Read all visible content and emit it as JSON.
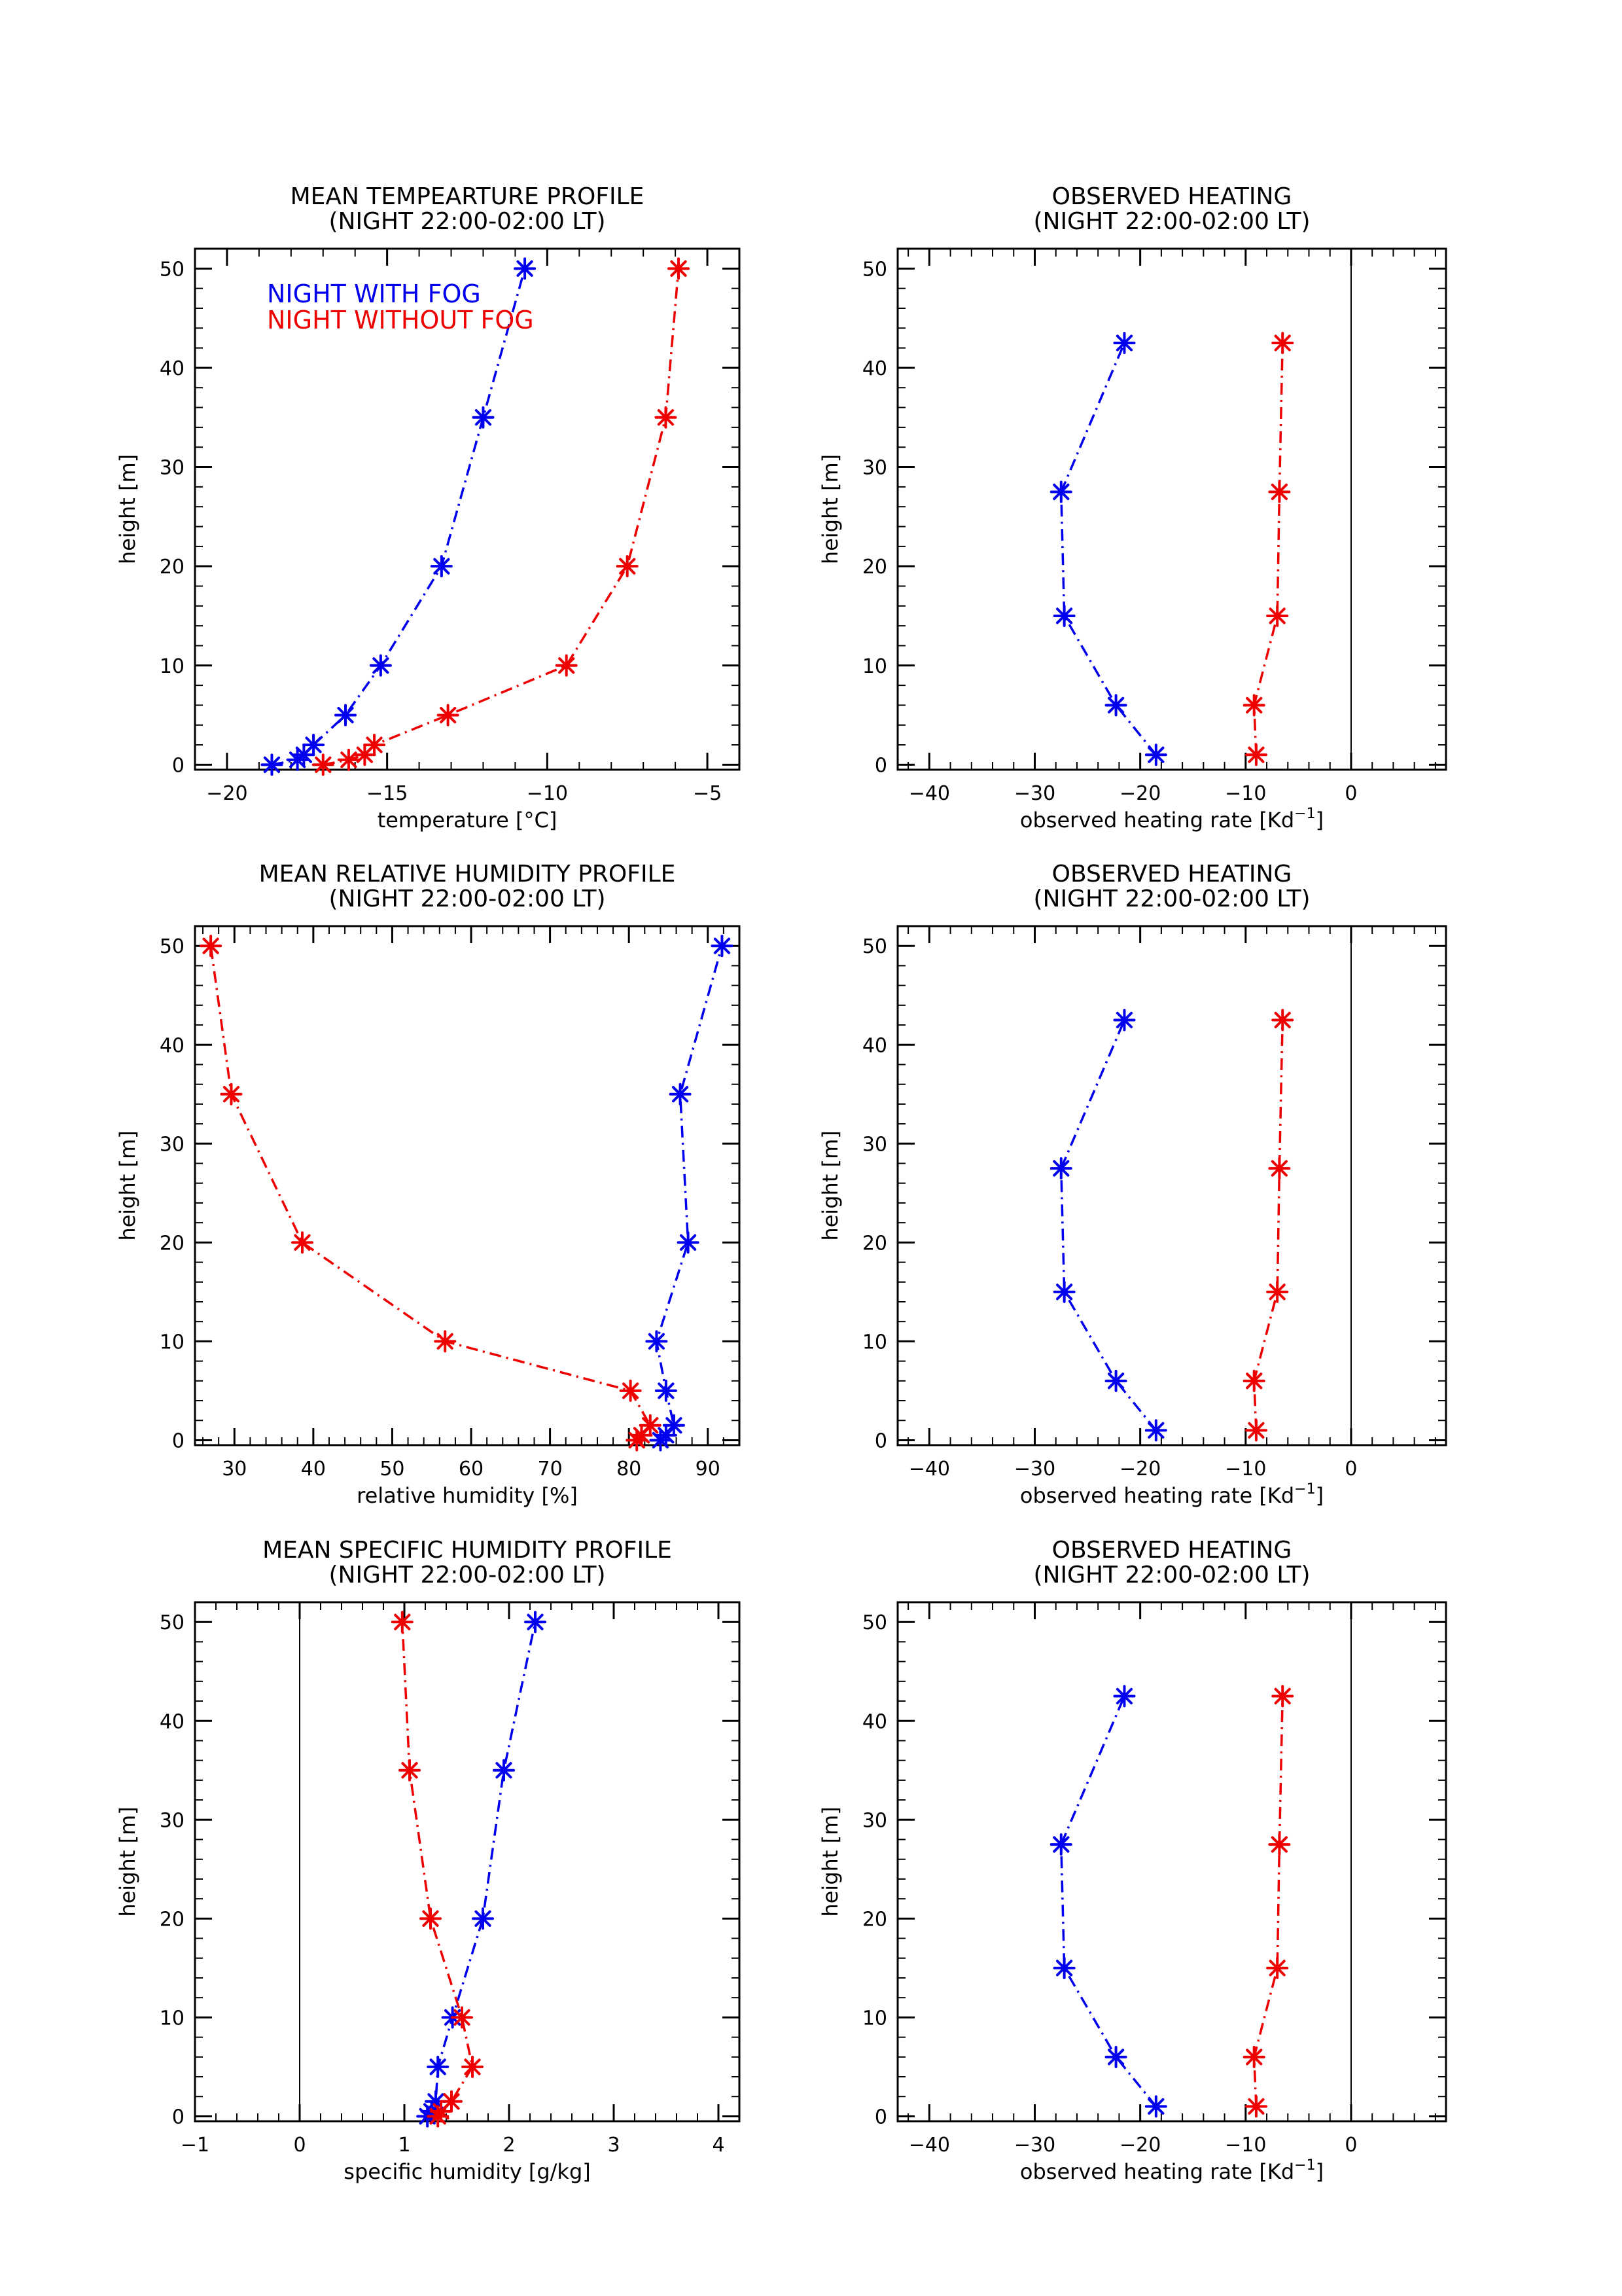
{
  "chart_data": [
    {
      "type": "line",
      "title": "MEAN TEMPEARTURE PROFILE",
      "subtitle": "(NIGHT 22:00-02:00 LT)",
      "xlabel": "temperature [°C]",
      "ylabel": "height [m]",
      "xlim": [
        -21,
        -4
      ],
      "ylim": [
        -0.5,
        52
      ],
      "xticks": [
        -20,
        -15,
        -10,
        -5
      ],
      "yticks": [
        0,
        10,
        20,
        30,
        40,
        50
      ],
      "xtick_labels": [
        "−20",
        "−15",
        "−10",
        "−5"
      ],
      "ytick_labels": [
        "0",
        "10",
        "20",
        "30",
        "40",
        "50"
      ],
      "grid": false,
      "legend": [
        {
          "label": "NIGHT WITH FOG",
          "color": "#0000ee"
        },
        {
          "label": "NIGHT WITHOUT FOG",
          "color": "#ee0000"
        }
      ],
      "series": [
        {
          "color": "#0000ee",
          "x": [
            -18.6,
            -17.8,
            -17.6,
            -17.3,
            -16.3,
            -15.2,
            -13.3,
            -12.0,
            -10.7
          ],
          "y": [
            0,
            0.5,
            1,
            2,
            5,
            10,
            20,
            35,
            50
          ]
        },
        {
          "color": "#ee0000",
          "x": [
            -17.0,
            -16.2,
            -15.7,
            -15.4,
            -13.1,
            -9.4,
            -7.5,
            -6.3,
            -5.9
          ],
          "y": [
            0,
            0.5,
            1,
            2,
            5,
            10,
            20,
            35,
            50
          ]
        }
      ]
    },
    {
      "type": "line",
      "title": "OBSERVED HEATING",
      "subtitle": "(NIGHT 22:00-02:00 LT)",
      "xlabel": "observed heating rate [Kd",
      "xlabel_sup": "−1",
      "xlabel_end": "]",
      "ylabel": "height [m]",
      "xlim": [
        -43,
        9
      ],
      "ylim": [
        -0.5,
        52
      ],
      "xticks": [
        -40,
        -30,
        -20,
        -10,
        0
      ],
      "yticks": [
        0,
        10,
        20,
        30,
        40,
        50
      ],
      "xtick_labels": [
        "−40",
        "−30",
        "−20",
        "−10",
        "0"
      ],
      "ytick_labels": [
        "0",
        "10",
        "20",
        "30",
        "40",
        "50"
      ],
      "vline": 0,
      "grid": false,
      "series": [
        {
          "color": "#0000ee",
          "x": [
            -18.5,
            -22.3,
            -27.2,
            -27.5,
            -21.5
          ],
          "y": [
            1,
            6,
            15,
            27.5,
            42.5
          ]
        },
        {
          "color": "#ee0000",
          "x": [
            -9.0,
            -9.2,
            -7.0,
            -6.8,
            -6.5
          ],
          "y": [
            1,
            6,
            15,
            27.5,
            42.5
          ]
        }
      ]
    },
    {
      "type": "line",
      "title": "MEAN RELATIVE HUMIDITY PROFILE",
      "subtitle": "(NIGHT 22:00-02:00 LT)",
      "xlabel": "relative humidity [%]",
      "ylabel": "height [m]",
      "xlim": [
        25,
        94
      ],
      "ylim": [
        -0.5,
        52
      ],
      "xticks": [
        30,
        40,
        50,
        60,
        70,
        80,
        90
      ],
      "yticks": [
        0,
        10,
        20,
        30,
        40,
        50
      ],
      "xtick_labels": [
        "30",
        "40",
        "50",
        "60",
        "70",
        "80",
        "90"
      ],
      "ytick_labels": [
        "0",
        "10",
        "20",
        "30",
        "40",
        "50"
      ],
      "grid": false,
      "series": [
        {
          "color": "#0000ee",
          "x": [
            84.0,
            84.7,
            85.7,
            84.7,
            83.5,
            87.5,
            86.5,
            91.8
          ],
          "y": [
            0,
            0.5,
            1.5,
            5,
            10,
            20,
            35,
            50
          ]
        },
        {
          "color": "#ee0000",
          "x": [
            81.0,
            81.6,
            82.7,
            80.2,
            56.7,
            38.6,
            29.6,
            27.0
          ],
          "y": [
            0,
            0.5,
            1.5,
            5,
            10,
            20,
            35,
            50
          ]
        }
      ]
    },
    {
      "type": "line",
      "title": "OBSERVED HEATING",
      "subtitle": "(NIGHT 22:00-02:00 LT)",
      "xlabel": "observed heating rate [Kd",
      "xlabel_sup": "−1",
      "xlabel_end": "]",
      "ylabel": "height [m]",
      "xlim": [
        -43,
        9
      ],
      "ylim": [
        -0.5,
        52
      ],
      "xticks": [
        -40,
        -30,
        -20,
        -10,
        0
      ],
      "yticks": [
        0,
        10,
        20,
        30,
        40,
        50
      ],
      "xtick_labels": [
        "−40",
        "−30",
        "−20",
        "−10",
        "0"
      ],
      "ytick_labels": [
        "0",
        "10",
        "20",
        "30",
        "40",
        "50"
      ],
      "vline": 0,
      "grid": false,
      "series": [
        {
          "color": "#0000ee",
          "x": [
            -18.5,
            -22.3,
            -27.2,
            -27.5,
            -21.5
          ],
          "y": [
            1,
            6,
            15,
            27.5,
            42.5
          ]
        },
        {
          "color": "#ee0000",
          "x": [
            -9.0,
            -9.2,
            -7.0,
            -6.8,
            -6.5
          ],
          "y": [
            1,
            6,
            15,
            27.5,
            42.5
          ]
        }
      ]
    },
    {
      "type": "line",
      "title": "MEAN SPECIFIC HUMIDITY PROFILE",
      "subtitle": "(NIGHT 22:00-02:00 LT)",
      "xlabel": "specific humidity [g/kg]",
      "ylabel": "height [m]",
      "xlim": [
        -1,
        4.2
      ],
      "ylim": [
        -0.5,
        52
      ],
      "xticks": [
        -1,
        0,
        1,
        2,
        3,
        4
      ],
      "yticks": [
        0,
        10,
        20,
        30,
        40,
        50
      ],
      "xtick_labels": [
        "−1",
        "0",
        "1",
        "2",
        "3",
        "4"
      ],
      "ytick_labels": [
        "0",
        "10",
        "20",
        "30",
        "40",
        "50"
      ],
      "vline": 0,
      "grid": false,
      "series": [
        {
          "color": "#0000ee",
          "x": [
            1.22,
            1.26,
            1.3,
            1.32,
            1.46,
            1.75,
            1.95,
            2.25
          ],
          "y": [
            0,
            0.5,
            1.5,
            5,
            10,
            20,
            35,
            50
          ]
        },
        {
          "color": "#ee0000",
          "x": [
            1.32,
            1.35,
            1.45,
            1.65,
            1.55,
            1.25,
            1.05,
            0.98
          ],
          "y": [
            0,
            0.5,
            1.5,
            5,
            10,
            20,
            35,
            50
          ]
        }
      ]
    },
    {
      "type": "line",
      "title": "OBSERVED HEATING",
      "subtitle": "(NIGHT 22:00-02:00 LT)",
      "xlabel": "observed heating rate [Kd",
      "xlabel_sup": "−1",
      "xlabel_end": "]",
      "ylabel": "height [m]",
      "xlim": [
        -43,
        9
      ],
      "ylim": [
        -0.5,
        52
      ],
      "xticks": [
        -40,
        -30,
        -20,
        -10,
        0
      ],
      "yticks": [
        0,
        10,
        20,
        30,
        40,
        50
      ],
      "xtick_labels": [
        "−40",
        "−30",
        "−20",
        "−10",
        "0"
      ],
      "ytick_labels": [
        "0",
        "10",
        "20",
        "30",
        "40",
        "50"
      ],
      "vline": 0,
      "grid": false,
      "series": [
        {
          "color": "#0000ee",
          "x": [
            -18.5,
            -22.3,
            -27.2,
            -27.5,
            -21.5
          ],
          "y": [
            1,
            6,
            15,
            27.5,
            42.5
          ]
        },
        {
          "color": "#ee0000",
          "x": [
            -9.0,
            -9.2,
            -7.0,
            -6.8,
            -6.5
          ],
          "y": [
            1,
            6,
            15,
            27.5,
            42.5
          ]
        }
      ]
    }
  ]
}
